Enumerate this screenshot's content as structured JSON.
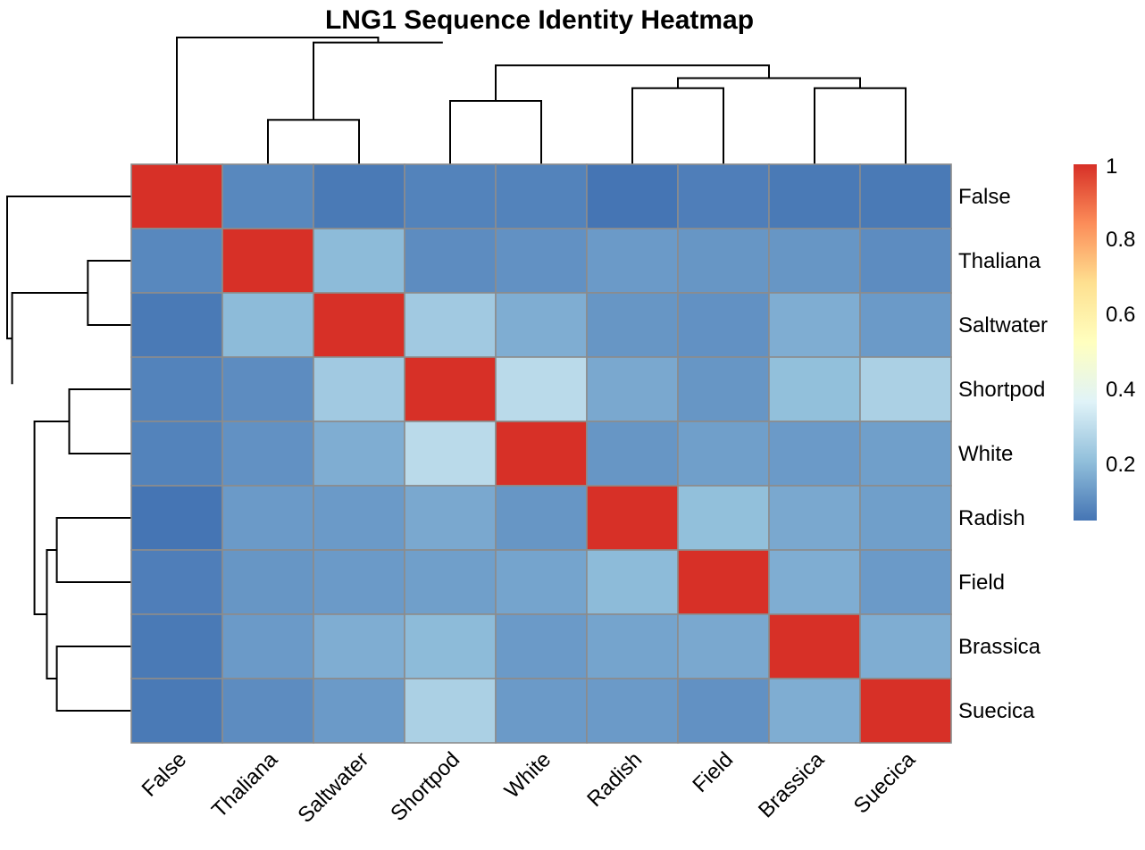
{
  "chart_data": {
    "type": "heatmap",
    "title": "LNG1 Sequence Identity Heatmap",
    "rows": [
      "False",
      "Thaliana",
      "Saltwater",
      "Shortpod",
      "White",
      "Radish",
      "Field",
      "Brassica",
      "Suecica"
    ],
    "columns": [
      "False",
      "Thaliana",
      "Saltwater",
      "Shortpod",
      "White",
      "Radish",
      "Field",
      "Brassica",
      "Suecica"
    ],
    "values": [
      [
        1.0,
        0.09,
        0.06,
        0.08,
        0.08,
        0.05,
        0.07,
        0.06,
        0.06
      ],
      [
        0.09,
        1.0,
        0.2,
        0.1,
        0.11,
        0.13,
        0.12,
        0.12,
        0.1
      ],
      [
        0.06,
        0.2,
        1.0,
        0.24,
        0.17,
        0.12,
        0.11,
        0.17,
        0.13
      ],
      [
        0.08,
        0.1,
        0.24,
        1.0,
        0.29,
        0.16,
        0.12,
        0.21,
        0.26
      ],
      [
        0.08,
        0.11,
        0.17,
        0.29,
        1.0,
        0.12,
        0.14,
        0.13,
        0.14
      ],
      [
        0.05,
        0.13,
        0.13,
        0.16,
        0.12,
        1.0,
        0.21,
        0.16,
        0.14
      ],
      [
        0.07,
        0.12,
        0.13,
        0.14,
        0.15,
        0.2,
        1.0,
        0.17,
        0.13
      ],
      [
        0.06,
        0.13,
        0.17,
        0.2,
        0.13,
        0.15,
        0.16,
        1.0,
        0.17
      ],
      [
        0.06,
        0.1,
        0.13,
        0.26,
        0.13,
        0.13,
        0.11,
        0.17,
        1.0
      ]
    ],
    "colorbar": {
      "ticks": [
        1,
        0.8,
        0.6,
        0.4,
        0.2
      ],
      "tick_labels": [
        "1",
        "0.8",
        "0.6",
        "0.4",
        "0.2"
      ],
      "range": [
        0.05,
        1.0
      ],
      "colors": [
        "#4575b4",
        "#91bfdb",
        "#e0f3f8",
        "#ffffbf",
        "#fee090",
        "#fc8d59",
        "#d73027"
      ]
    },
    "grid": true,
    "legend_position": "right"
  }
}
